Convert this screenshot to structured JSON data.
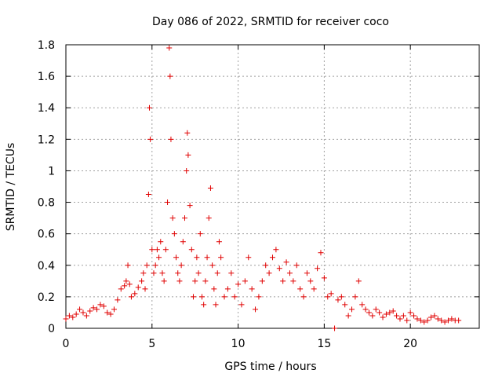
{
  "chart_data": {
    "type": "scatter",
    "title": "Day 086 of 2022, SRMTID for receiver coco",
    "xlabel": "GPS time / hours",
    "ylabel": "SRMTID / TECUs",
    "xlim": [
      0,
      24
    ],
    "ylim": [
      0,
      1.8
    ],
    "x_ticks": [
      0,
      5,
      10,
      15,
      20
    ],
    "y_ticks": [
      0,
      0.2,
      0.4,
      0.6,
      0.8,
      1,
      1.2,
      1.4,
      1.6,
      1.8
    ],
    "x_tick_labels": [
      "0",
      "5",
      "10",
      "15",
      "20"
    ],
    "y_tick_labels": [
      "0",
      "0.2",
      "0.4",
      "0.6",
      "0.8",
      "1",
      "1.2",
      "1.4",
      "1.6",
      "1.8"
    ],
    "grid": true,
    "marker": "+",
    "series": [
      {
        "name": "SRMTID",
        "color": "#e00000",
        "x": [
          0.0,
          0.2,
          0.4,
          0.6,
          0.8,
          1.0,
          1.2,
          1.4,
          1.6,
          1.8,
          2.0,
          2.2,
          2.4,
          2.6,
          2.8,
          3.0,
          3.2,
          3.4,
          3.5,
          3.6,
          3.7,
          3.8,
          4.0,
          4.2,
          4.4,
          4.5,
          4.6,
          4.7,
          4.8,
          4.85,
          4.9,
          5.0,
          5.1,
          5.2,
          5.3,
          5.4,
          5.5,
          5.6,
          5.7,
          5.8,
          5.9,
          6.0,
          6.05,
          6.1,
          6.2,
          6.3,
          6.4,
          6.5,
          6.6,
          6.7,
          6.8,
          6.9,
          7.0,
          7.05,
          7.1,
          7.2,
          7.3,
          7.4,
          7.5,
          7.6,
          7.7,
          7.8,
          7.9,
          8.0,
          8.1,
          8.2,
          8.3,
          8.4,
          8.5,
          8.6,
          8.7,
          8.8,
          8.9,
          9.0,
          9.2,
          9.4,
          9.6,
          9.8,
          10.0,
          10.2,
          10.4,
          10.6,
          10.8,
          11.0,
          11.2,
          11.4,
          11.6,
          11.8,
          12.0,
          12.2,
          12.4,
          12.6,
          12.8,
          13.0,
          13.2,
          13.4,
          13.6,
          13.8,
          14.0,
          14.2,
          14.4,
          14.6,
          14.8,
          15.0,
          15.2,
          15.4,
          15.6,
          15.8,
          16.0,
          16.2,
          16.4,
          16.6,
          16.8,
          17.0,
          17.2,
          17.4,
          17.6,
          17.8,
          18.0,
          18.2,
          18.4,
          18.6,
          18.8,
          19.0,
          19.2,
          19.4,
          19.6,
          19.8,
          20.0,
          20.2,
          20.4,
          20.6,
          20.8,
          21.0,
          21.2,
          21.4,
          21.6,
          21.8,
          22.0,
          22.2,
          22.4,
          22.6,
          22.8
        ],
        "y": [
          0.06,
          0.08,
          0.07,
          0.09,
          0.12,
          0.1,
          0.08,
          0.11,
          0.13,
          0.12,
          0.15,
          0.14,
          0.1,
          0.09,
          0.12,
          0.18,
          0.25,
          0.27,
          0.3,
          0.4,
          0.28,
          0.2,
          0.22,
          0.26,
          0.3,
          0.35,
          0.25,
          0.4,
          0.85,
          1.4,
          1.2,
          0.5,
          0.35,
          0.4,
          0.5,
          0.45,
          0.55,
          0.35,
          0.3,
          0.5,
          0.8,
          1.78,
          1.6,
          1.2,
          0.7,
          0.6,
          0.45,
          0.35,
          0.3,
          0.4,
          0.55,
          0.7,
          1.0,
          1.24,
          1.1,
          0.78,
          0.5,
          0.2,
          0.3,
          0.45,
          0.35,
          0.6,
          0.2,
          0.15,
          0.3,
          0.45,
          0.7,
          0.89,
          0.4,
          0.25,
          0.15,
          0.35,
          0.55,
          0.45,
          0.2,
          0.25,
          0.35,
          0.2,
          0.28,
          0.15,
          0.3,
          0.45,
          0.25,
          0.12,
          0.2,
          0.3,
          0.4,
          0.35,
          0.45,
          0.5,
          0.38,
          0.3,
          0.42,
          0.35,
          0.3,
          0.4,
          0.25,
          0.2,
          0.35,
          0.3,
          0.25,
          0.38,
          0.48,
          0.32,
          0.2,
          0.22,
          0.0,
          0.18,
          0.2,
          0.15,
          0.08,
          0.12,
          0.2,
          0.3,
          0.15,
          0.12,
          0.1,
          0.08,
          0.12,
          0.1,
          0.07,
          0.09,
          0.1,
          0.11,
          0.08,
          0.06,
          0.08,
          0.05,
          0.1,
          0.08,
          0.06,
          0.05,
          0.04,
          0.05,
          0.07,
          0.08,
          0.06,
          0.05,
          0.04,
          0.05,
          0.06,
          0.05,
          0.05
        ]
      }
    ]
  }
}
